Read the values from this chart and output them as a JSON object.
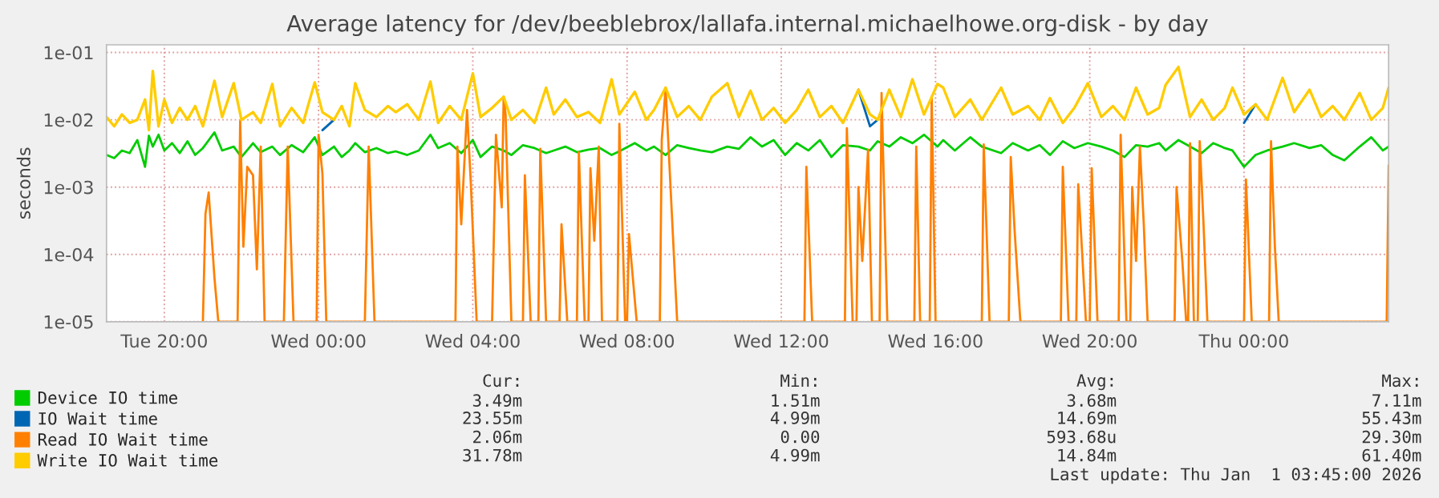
{
  "chart_data": {
    "type": "line",
    "title": "Average latency for /dev/beeblebrox/lallafa.internal.michaelhowe.org-disk - by day",
    "ylabel": "seconds",
    "log": true,
    "grid": true,
    "legend": "bottom",
    "xlim": [
      "2025-12-30T18:30",
      "2026-01-01T03:45"
    ],
    "xticks": [
      {
        "value": "2025-12-30T20:00",
        "label": "Tue 20:00"
      },
      {
        "value": "2025-12-31T00:00",
        "label": "Wed 00:00"
      },
      {
        "value": "2025-12-31T04:00",
        "label": "Wed 04:00"
      },
      {
        "value": "2025-12-31T08:00",
        "label": "Wed 08:00"
      },
      {
        "value": "2025-12-31T12:00",
        "label": "Wed 12:00"
      },
      {
        "value": "2025-12-31T16:00",
        "label": "Wed 16:00"
      },
      {
        "value": "2025-12-31T20:00",
        "label": "Wed 20:00"
      },
      {
        "value": "2026-01-01T00:00",
        "label": "Thu 00:00"
      }
    ],
    "ylim": [
      1e-05,
      0.13
    ],
    "yticks": [
      {
        "value": 1e-05,
        "label": "1e-05"
      },
      {
        "value": 0.0001,
        "label": "1e-04"
      },
      {
        "value": 0.001,
        "label": "1e-03"
      },
      {
        "value": 0.01,
        "label": "1e-02"
      },
      {
        "value": 0.1,
        "label": "1e-01"
      }
    ],
    "x": [
      "2025-12-30T18:30",
      "2025-12-30T18:42",
      "2025-12-30T18:54",
      "2025-12-30T19:06",
      "2025-12-30T19:18",
      "2025-12-30T19:30",
      "2025-12-30T19:36",
      "2025-12-30T19:42",
      "2025-12-30T19:51",
      "2025-12-30T20:00",
      "2025-12-30T20:12",
      "2025-12-30T20:24",
      "2025-12-30T20:36",
      "2025-12-30T20:48",
      "2025-12-30T21:00",
      "2025-12-30T21:18",
      "2025-12-30T21:30",
      "2025-12-30T21:48",
      "2025-12-30T22:00",
      "2025-12-30T22:18",
      "2025-12-30T22:30",
      "2025-12-30T22:48",
      "2025-12-30T23:00",
      "2025-12-30T23:18",
      "2025-12-30T23:36",
      "2025-12-30T23:54",
      "2025-12-31T00:06",
      "2025-12-31T00:24",
      "2025-12-31T00:36",
      "2025-12-31T00:48",
      "2025-12-31T00:57",
      "2025-12-31T01:12",
      "2025-12-31T01:30",
      "2025-12-31T01:48",
      "2025-12-31T02:00",
      "2025-12-31T02:18",
      "2025-12-31T02:36",
      "2025-12-31T02:54",
      "2025-12-31T03:06",
      "2025-12-31T03:24",
      "2025-12-31T03:42",
      "2025-12-31T04:00",
      "2025-12-31T04:12",
      "2025-12-31T04:30",
      "2025-12-31T04:48",
      "2025-12-31T05:00",
      "2025-12-31T05:18",
      "2025-12-31T05:36",
      "2025-12-31T05:54",
      "2025-12-31T06:06",
      "2025-12-31T06:24",
      "2025-12-31T06:42",
      "2025-12-31T07:00",
      "2025-12-31T07:18",
      "2025-12-31T07:36",
      "2025-12-31T07:48",
      "2025-12-31T08:12",
      "2025-12-31T08:30",
      "2025-12-31T08:42",
      "2025-12-31T09:00",
      "2025-12-31T09:18",
      "2025-12-31T09:36",
      "2025-12-31T09:54",
      "2025-12-31T10:12",
      "2025-12-31T10:36",
      "2025-12-31T10:54",
      "2025-12-31T11:12",
      "2025-12-31T11:30",
      "2025-12-31T11:48",
      "2025-12-31T12:06",
      "2025-12-31T12:24",
      "2025-12-31T12:42",
      "2025-12-31T13:00",
      "2025-12-31T13:18",
      "2025-12-31T13:36",
      "2025-12-31T14:00",
      "2025-12-31T14:18",
      "2025-12-31T14:30",
      "2025-12-31T14:48",
      "2025-12-31T15:06",
      "2025-12-31T15:24",
      "2025-12-31T15:42",
      "2025-12-31T16:03",
      "2025-12-31T16:12",
      "2025-12-31T16:30",
      "2025-12-31T16:54",
      "2025-12-31T17:12",
      "2025-12-31T17:42",
      "2025-12-31T18:00",
      "2025-12-31T18:24",
      "2025-12-31T18:42",
      "2025-12-31T18:58",
      "2025-12-31T19:18",
      "2025-12-31T19:36",
      "2025-12-31T19:57",
      "2025-12-31T20:18",
      "2025-12-31T20:36",
      "2025-12-31T20:54",
      "2025-12-31T21:12",
      "2025-12-31T21:30",
      "2025-12-31T21:48",
      "2025-12-31T21:58",
      "2025-12-31T22:18",
      "2025-12-31T22:36",
      "2025-12-31T22:54",
      "2025-12-31T23:12",
      "2025-12-31T23:30",
      "2025-12-31T23:42",
      "2026-01-01T00:00",
      "2026-01-01T00:18",
      "2026-01-01T00:36",
      "2026-01-01T01:00",
      "2026-01-01T01:18",
      "2026-01-01T01:42",
      "2026-01-01T02:00",
      "2026-01-01T02:18",
      "2026-01-01T02:36",
      "2026-01-01T03:00",
      "2026-01-01T03:18",
      "2026-01-01T03:36",
      "2026-01-01T03:45"
    ],
    "series": [
      {
        "name": "Device IO time",
        "color": "#00cc00",
        "values": [
          0.003,
          0.0027,
          0.0035,
          0.0032,
          0.005,
          0.002,
          0.0058,
          0.004,
          0.006,
          0.0035,
          0.0045,
          0.0032,
          0.0048,
          0.003,
          0.0038,
          0.0065,
          0.0035,
          0.004,
          0.0028,
          0.0045,
          0.0033,
          0.004,
          0.003,
          0.0042,
          0.0033,
          0.0055,
          0.003,
          0.004,
          0.0028,
          0.0035,
          0.0045,
          0.0033,
          0.0038,
          0.0032,
          0.0034,
          0.003,
          0.0035,
          0.006,
          0.0038,
          0.0045,
          0.0032,
          0.005,
          0.0028,
          0.004,
          0.0035,
          0.003,
          0.0042,
          0.0038,
          0.0032,
          0.0035,
          0.004,
          0.0033,
          0.0036,
          0.0038,
          0.003,
          0.0034,
          0.0045,
          0.0035,
          0.004,
          0.003,
          0.0042,
          0.0038,
          0.0035,
          0.0033,
          0.004,
          0.0037,
          0.0055,
          0.004,
          0.005,
          0.003,
          0.0045,
          0.0035,
          0.005,
          0.0028,
          0.0042,
          0.004,
          0.0035,
          0.0048,
          0.004,
          0.0055,
          0.0045,
          0.006,
          0.004,
          0.005,
          0.0035,
          0.0055,
          0.004,
          0.0032,
          0.0045,
          0.0035,
          0.0042,
          0.003,
          0.0048,
          0.0038,
          0.0045,
          0.004,
          0.0035,
          0.0028,
          0.0042,
          0.004,
          0.0045,
          0.0035,
          0.005,
          0.004,
          0.0032,
          0.0045,
          0.0038,
          0.0035,
          0.002,
          0.003,
          0.0035,
          0.004,
          0.0045,
          0.0038,
          0.0042,
          0.003,
          0.0025,
          0.004,
          0.0055,
          0.0035,
          0.004
        ]
      },
      {
        "name": "IO Wait time",
        "color": "#0066b3",
        "values": [
          null,
          null,
          null,
          null,
          null,
          null,
          null,
          null,
          null,
          null,
          null,
          null,
          null,
          null,
          null,
          null,
          null,
          null,
          null,
          null,
          null,
          null,
          null,
          null,
          null,
          null,
          0.007,
          0.01,
          null,
          null,
          null,
          null,
          null,
          null,
          null,
          null,
          null,
          null,
          null,
          null,
          null,
          null,
          null,
          null,
          null,
          null,
          null,
          null,
          null,
          null,
          null,
          null,
          null,
          null,
          null,
          null,
          null,
          null,
          null,
          null,
          null,
          null,
          null,
          null,
          null,
          null,
          null,
          null,
          null,
          null,
          null,
          null,
          null,
          null,
          null,
          0.028,
          0.008,
          0.01,
          null,
          null,
          null,
          null,
          null,
          null,
          null,
          null,
          null,
          null,
          null,
          null,
          null,
          null,
          null,
          null,
          null,
          null,
          null,
          null,
          null,
          null,
          null,
          null,
          null,
          null,
          null,
          null,
          null,
          null,
          0.009,
          0.017,
          null,
          null,
          null,
          null,
          null,
          null,
          null,
          null,
          null,
          null,
          null
        ]
      },
      {
        "name": "Read IO Wait time",
        "color": "#ff8000",
        "x": [
          "2025-12-30T21:00",
          "2025-12-30T21:04",
          "2025-12-30T21:09",
          "2025-12-30T21:18",
          "2025-12-30T21:24",
          "2025-12-30T21:54",
          "2025-12-30T21:58",
          "2025-12-30T22:03",
          "2025-12-30T22:09",
          "2025-12-30T22:18",
          "2025-12-30T22:24",
          "2025-12-30T22:30",
          "2025-12-30T22:36",
          "2025-12-30T23:06",
          "2025-12-30T23:12",
          "2025-12-30T23:21",
          "2025-12-30T23:57",
          "2025-12-31T00:00",
          "2025-12-31T00:06",
          "2025-12-31T00:12",
          "2025-12-31T01:12",
          "2025-12-31T01:18",
          "2025-12-31T01:27",
          "2025-12-31T03:33",
          "2025-12-31T03:36",
          "2025-12-31T03:42",
          "2025-12-31T03:51",
          "2025-12-31T03:57",
          "2025-12-31T04:06",
          "2025-12-31T04:30",
          "2025-12-31T04:36",
          "2025-12-31T04:45",
          "2025-12-31T04:48",
          "2025-12-31T04:51",
          "2025-12-31T05:00",
          "2025-12-31T05:18",
          "2025-12-31T05:21",
          "2025-12-31T05:30",
          "2025-12-31T05:42",
          "2025-12-31T05:45",
          "2025-12-31T05:54",
          "2025-12-31T06:15",
          "2025-12-31T06:18",
          "2025-12-31T06:27",
          "2025-12-31T06:42",
          "2025-12-31T06:45",
          "2025-12-31T06:54",
          "2025-12-31T07:00",
          "2025-12-31T07:03",
          "2025-12-31T07:09",
          "2025-12-31T07:16",
          "2025-12-31T07:21",
          "2025-12-31T07:45",
          "2025-12-31T07:48",
          "2025-12-31T07:57",
          "2025-12-31T08:00",
          "2025-12-31T08:03",
          "2025-12-31T08:15",
          "2025-12-31T08:51",
          "2025-12-31T08:54",
          "2025-12-31T09:00",
          "2025-12-31T09:18",
          "2025-12-31T12:36",
          "2025-12-31T12:39",
          "2025-12-31T12:48",
          "2025-12-31T13:39",
          "2025-12-31T13:42",
          "2025-12-31T13:51",
          "2025-12-31T13:57",
          "2025-12-31T14:00",
          "2025-12-31T14:06",
          "2025-12-31T14:15",
          "2025-12-31T14:21",
          "2025-12-31T14:33",
          "2025-12-31T14:36",
          "2025-12-31T14:45",
          "2025-12-31T15:27",
          "2025-12-31T15:30",
          "2025-12-31T15:36",
          "2025-12-31T15:51",
          "2025-12-31T15:54",
          "2025-12-31T16:00",
          "2025-12-31T17:12",
          "2025-12-31T17:15",
          "2025-12-31T17:24",
          "2025-12-31T17:54",
          "2025-12-31T17:57",
          "2025-12-31T18:03",
          "2025-12-31T18:12",
          "2025-12-31T19:15",
          "2025-12-31T19:18",
          "2025-12-31T19:27",
          "2025-12-31T19:39",
          "2025-12-31T19:42",
          "2025-12-31T19:48",
          "2025-12-31T19:54",
          "2025-12-31T20:00",
          "2025-12-31T20:03",
          "2025-12-31T20:12",
          "2025-12-31T20:45",
          "2025-12-31T20:48",
          "2025-12-31T20:57",
          "2025-12-31T21:03",
          "2025-12-31T21:06",
          "2025-12-31T21:12",
          "2025-12-31T21:18",
          "2025-12-31T21:24",
          "2025-12-31T21:30",
          "2025-12-31T22:12",
          "2025-12-31T22:15",
          "2025-12-31T22:24",
          "2025-12-31T22:30",
          "2025-12-31T22:33",
          "2025-12-31T22:36",
          "2025-12-31T22:42",
          "2025-12-31T22:48",
          "2025-12-31T22:51",
          "2025-12-31T22:57",
          "2025-12-31T23:03",
          "2026-01-01T00:00",
          "2026-01-01T00:03",
          "2026-01-01T00:12",
          "2026-01-01T00:39",
          "2026-01-01T00:42",
          "2026-01-01T00:48",
          "2026-01-01T00:54",
          "2026-01-01T03:42",
          "2026-01-01T03:45"
        ],
        "values": [
          1e-05,
          0.0004,
          0.00083,
          4.5e-05,
          1e-05,
          1e-05,
          0.0095,
          0.00013,
          0.002,
          0.0015,
          6e-05,
          0.004,
          1e-05,
          1e-05,
          0.004,
          1e-05,
          1e-05,
          0.006,
          0.0016,
          1e-05,
          1e-05,
          0.004,
          1e-05,
          1e-05,
          0.004,
          0.00028,
          0.014,
          0.0011,
          1e-05,
          1e-05,
          0.006,
          0.0005,
          0.022,
          0.012,
          1e-05,
          1e-05,
          0.0015,
          1e-05,
          1e-05,
          0.0037,
          1e-05,
          1e-05,
          0.00028,
          1e-05,
          1e-05,
          0.0033,
          1e-05,
          1e-05,
          0.0019,
          0.00016,
          0.004,
          1e-05,
          1e-05,
          0.0087,
          1e-05,
          1e-05,
          0.0002,
          1e-05,
          1e-05,
          0.005,
          0.03,
          1e-05,
          1e-05,
          0.002,
          1e-05,
          1e-05,
          0.0075,
          1e-05,
          1e-05,
          0.001,
          8e-05,
          0.0036,
          1e-05,
          1e-05,
          0.025,
          1e-05,
          1e-05,
          0.004,
          1e-05,
          1e-05,
          0.022,
          1e-05,
          1e-05,
          0.0043,
          1e-05,
          1e-05,
          0.0028,
          0.00023,
          1e-05,
          1e-05,
          0.002,
          1e-05,
          1e-05,
          0.0011,
          0.00011,
          1e-05,
          1e-05,
          0.0019,
          1e-05,
          1e-05,
          0.006,
          1e-05,
          1e-05,
          0.001,
          8e-05,
          0.004,
          0.00028,
          1e-05,
          1e-05,
          0.001,
          8e-05,
          1e-05,
          1e-05,
          0.0045,
          1e-05,
          1e-05,
          0.0048,
          0.00028,
          1e-05,
          1e-05,
          0.0013,
          1e-05,
          1e-05,
          0.0048,
          0.00013,
          1e-05,
          1e-05,
          0.0021
        ]
      },
      {
        "name": "Write IO Wait time",
        "color": "#ffcc00",
        "values": [
          0.011,
          0.008,
          0.012,
          0.009,
          0.01,
          0.02,
          0.007,
          0.053,
          0.008,
          0.02,
          0.009,
          0.015,
          0.01,
          0.016,
          0.008,
          0.038,
          0.011,
          0.035,
          0.01,
          0.013,
          0.009,
          0.034,
          0.008,
          0.015,
          0.009,
          0.036,
          0.013,
          0.01,
          0.016,
          0.008,
          0.035,
          0.014,
          0.011,
          0.016,
          0.013,
          0.017,
          0.01,
          0.037,
          0.009,
          0.016,
          0.01,
          0.049,
          0.011,
          0.015,
          0.022,
          0.01,
          0.014,
          0.009,
          0.03,
          0.012,
          0.02,
          0.011,
          0.013,
          0.009,
          0.04,
          0.012,
          0.026,
          0.01,
          0.014,
          0.03,
          0.011,
          0.016,
          0.01,
          0.022,
          0.035,
          0.011,
          0.027,
          0.01,
          0.015,
          0.009,
          0.014,
          0.028,
          0.011,
          0.016,
          0.009,
          0.028,
          0.012,
          0.01,
          0.028,
          0.011,
          0.04,
          0.012,
          0.034,
          0.03,
          0.011,
          0.02,
          0.01,
          0.03,
          0.012,
          0.016,
          0.01,
          0.021,
          0.009,
          0.015,
          0.035,
          0.011,
          0.016,
          0.01,
          0.03,
          0.012,
          0.015,
          0.033,
          0.061,
          0.011,
          0.02,
          0.01,
          0.015,
          0.03,
          0.012,
          0.017,
          0.01,
          0.042,
          0.013,
          0.028,
          0.011,
          0.016,
          0.01,
          0.025,
          0.01,
          0.015,
          0.03
        ]
      }
    ],
    "annotations": [
      "Cur:",
      "Min:",
      "Avg:",
      "Max:",
      "3.49m",
      "1.51m",
      "3.68m",
      "7.11m",
      "23.55m",
      "4.99m",
      "14.69m",
      "55.43m",
      "2.06m",
      "0.00",
      "593.68u",
      "29.30m",
      "31.78m",
      "4.99m",
      "14.84m",
      "61.40m",
      "Last update: Thu Jan  1 03:45:00 2026"
    ]
  }
}
